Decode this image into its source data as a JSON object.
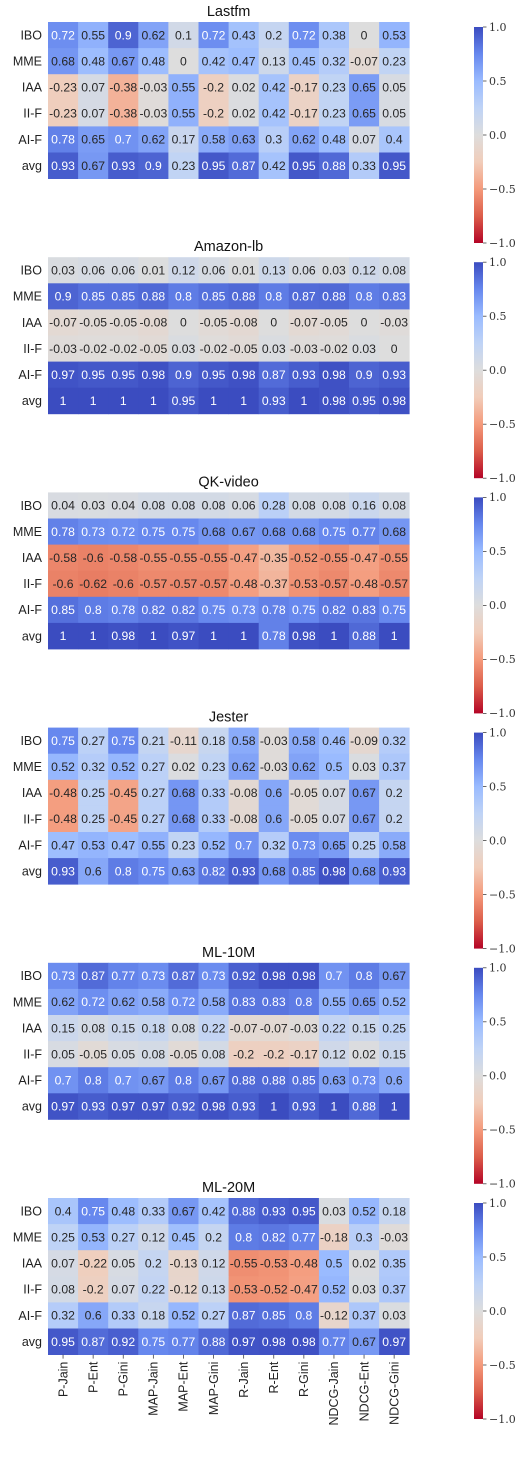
{
  "chart_data": {
    "type": "heatmap",
    "columns": [
      "P-Jain",
      "P-Ent",
      "P-Gini",
      "MAP-Jain",
      "MAP-Ent",
      "MAP-Gini",
      "R-Jain",
      "R-Ent",
      "R-Gini",
      "NDCG-Jain",
      "NDCG-Ent",
      "NDCG-Gini"
    ],
    "rows": [
      "IBO",
      "MME",
      "IAA",
      "II-F",
      "AI-F",
      "avg"
    ],
    "colormap": "coolwarm_r",
    "vmin": -1.0,
    "vmax": 1.0,
    "colorbar_ticks": [
      1.0,
      0.5,
      0.0,
      -0.5,
      -1.0
    ],
    "colorbar_tick_labels": [
      "1.0",
      "0.5",
      "0.0",
      "−0.5",
      "−1.0"
    ],
    "panels": [
      {
        "title": "Lastfm",
        "values": [
          [
            0.72,
            0.55,
            0.9,
            0.62,
            0.1,
            0.72,
            0.43,
            0.2,
            0.72,
            0.38,
            0,
            0.53
          ],
          [
            0.68,
            0.48,
            0.67,
            0.48,
            0,
            0.42,
            0.47,
            0.13,
            0.45,
            0.32,
            -0.07,
            0.23
          ],
          [
            -0.23,
            0.07,
            -0.38,
            -0.03,
            0.55,
            -0.2,
            0.02,
            0.42,
            -0.17,
            0.23,
            0.65,
            0.05
          ],
          [
            -0.23,
            0.07,
            -0.38,
            -0.03,
            0.55,
            -0.2,
            0.02,
            0.42,
            -0.17,
            0.23,
            0.65,
            0.05
          ],
          [
            0.78,
            0.65,
            0.7,
            0.62,
            0.17,
            0.58,
            0.63,
            0.3,
            0.62,
            0.48,
            0.07,
            0.4
          ],
          [
            0.93,
            0.67,
            0.93,
            0.9,
            0.23,
            0.95,
            0.87,
            0.42,
            0.95,
            0.88,
            0.33,
            0.95
          ]
        ]
      },
      {
        "title": "Amazon-lb",
        "values": [
          [
            0.03,
            0.06,
            0.06,
            0.01,
            0.12,
            0.06,
            0.01,
            0.13,
            0.06,
            0.03,
            0.12,
            0.08
          ],
          [
            0.9,
            0.85,
            0.85,
            0.88,
            0.8,
            0.85,
            0.88,
            0.8,
            0.87,
            0.88,
            0.8,
            0.83
          ],
          [
            -0.07,
            -0.05,
            -0.05,
            -0.08,
            0,
            -0.05,
            -0.08,
            0,
            -0.07,
            -0.05,
            0,
            -0.03
          ],
          [
            -0.03,
            -0.02,
            -0.02,
            -0.05,
            0.03,
            -0.02,
            -0.05,
            0.03,
            -0.03,
            -0.02,
            0.03,
            0
          ],
          [
            0.97,
            0.95,
            0.95,
            0.98,
            0.9,
            0.95,
            0.98,
            0.87,
            0.93,
            0.98,
            0.9,
            0.93
          ],
          [
            1,
            1,
            1,
            1,
            0.95,
            1,
            1,
            0.93,
            1,
            0.98,
            0.95,
            0.98
          ]
        ]
      },
      {
        "title": "QK-video",
        "values": [
          [
            0.04,
            0.03,
            0.04,
            0.08,
            0.08,
            0.08,
            0.06,
            0.28,
            0.08,
            0.08,
            0.16,
            0.08
          ],
          [
            0.78,
            0.73,
            0.72,
            0.75,
            0.75,
            0.68,
            0.67,
            0.68,
            0.68,
            0.75,
            0.77,
            0.68
          ],
          [
            -0.58,
            -0.6,
            -0.58,
            -0.55,
            -0.55,
            -0.55,
            -0.47,
            -0.35,
            -0.52,
            -0.55,
            -0.47,
            -0.55
          ],
          [
            -0.6,
            -0.62,
            -0.6,
            -0.57,
            -0.57,
            -0.57,
            -0.48,
            -0.37,
            -0.53,
            -0.57,
            -0.48,
            -0.57
          ],
          [
            0.85,
            0.8,
            0.78,
            0.82,
            0.82,
            0.75,
            0.73,
            0.78,
            0.75,
            0.82,
            0.83,
            0.75
          ],
          [
            1,
            1,
            0.98,
            1,
            0.97,
            1,
            1,
            0.78,
            0.98,
            1,
            0.88,
            1
          ]
        ]
      },
      {
        "title": "Jester",
        "values": [
          [
            0.75,
            0.27,
            0.75,
            0.21,
            -0.11,
            0.18,
            0.58,
            -0.03,
            0.58,
            0.46,
            -0.09,
            0.32
          ],
          [
            0.52,
            0.32,
            0.52,
            0.27,
            0.02,
            0.23,
            0.62,
            -0.03,
            0.62,
            0.5,
            0.03,
            0.37
          ],
          [
            -0.48,
            0.25,
            -0.45,
            0.27,
            0.68,
            0.33,
            -0.08,
            0.6,
            -0.05,
            0.07,
            0.67,
            0.2
          ],
          [
            -0.48,
            0.25,
            -0.45,
            0.27,
            0.68,
            0.33,
            -0.08,
            0.6,
            -0.05,
            0.07,
            0.67,
            0.2
          ],
          [
            0.47,
            0.53,
            0.47,
            0.55,
            0.23,
            0.52,
            0.7,
            0.32,
            0.73,
            0.65,
            0.25,
            0.58
          ],
          [
            0.93,
            0.6,
            0.8,
            0.75,
            0.63,
            0.82,
            0.93,
            0.68,
            0.85,
            0.98,
            0.68,
            0.93
          ]
        ]
      },
      {
        "title": "ML-10M",
        "values": [
          [
            0.73,
            0.87,
            0.77,
            0.73,
            0.87,
            0.73,
            0.92,
            0.98,
            0.98,
            0.7,
            0.8,
            0.67
          ],
          [
            0.62,
            0.72,
            0.62,
            0.58,
            0.72,
            0.58,
            0.83,
            0.83,
            0.8,
            0.55,
            0.65,
            0.52
          ],
          [
            0.15,
            0.08,
            0.15,
            0.18,
            0.08,
            0.22,
            -0.07,
            -0.07,
            -0.03,
            0.22,
            0.15,
            0.25
          ],
          [
            0.05,
            -0.05,
            0.05,
            0.08,
            -0.05,
            0.08,
            -0.2,
            -0.2,
            -0.17,
            0.12,
            0.02,
            0.15
          ],
          [
            0.7,
            0.8,
            0.7,
            0.67,
            0.8,
            0.67,
            0.88,
            0.88,
            0.85,
            0.63,
            0.73,
            0.6
          ],
          [
            0.97,
            0.93,
            0.97,
            0.97,
            0.92,
            0.98,
            0.93,
            1,
            0.93,
            1,
            0.88,
            1
          ]
        ]
      },
      {
        "title": "ML-20M",
        "values": [
          [
            0.4,
            0.75,
            0.48,
            0.33,
            0.67,
            0.42,
            0.88,
            0.93,
            0.95,
            0.03,
            0.52,
            0.18
          ],
          [
            0.25,
            0.53,
            0.27,
            0.12,
            0.45,
            0.2,
            0.8,
            0.82,
            0.77,
            -0.18,
            0.3,
            -0.03
          ],
          [
            0.07,
            -0.22,
            0.05,
            0.2,
            -0.13,
            0.12,
            -0.55,
            -0.53,
            -0.48,
            0.5,
            0.02,
            0.35
          ],
          [
            0.08,
            -0.2,
            0.07,
            0.22,
            -0.12,
            0.13,
            -0.53,
            -0.52,
            -0.47,
            0.52,
            0.03,
            0.37
          ],
          [
            0.32,
            0.6,
            0.33,
            0.18,
            0.52,
            0.27,
            0.87,
            0.85,
            0.8,
            -0.12,
            0.37,
            0.03
          ],
          [
            0.95,
            0.87,
            0.92,
            0.75,
            0.77,
            0.88,
            0.97,
            0.98,
            0.98,
            0.77,
            0.67,
            0.97
          ]
        ]
      }
    ]
  }
}
